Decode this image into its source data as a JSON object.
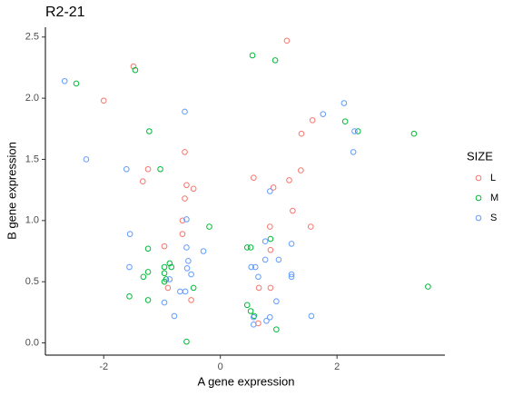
{
  "chart_data": {
    "type": "scatter",
    "title": "R2-21",
    "x_label": "A gene expression",
    "y_label": "B gene expression",
    "legend_title": "SIZE",
    "xlim": [
      -3.0,
      3.85
    ],
    "ylim": [
      -0.1,
      2.58
    ],
    "xticks": [
      -2,
      0,
      2
    ],
    "yticks": [
      {
        "value": 0,
        "label": "0.0"
      },
      0.5,
      {
        "value": 1,
        "label": "1.0"
      },
      1.5,
      {
        "value": 2,
        "label": "2.0"
      },
      2.5
    ],
    "series": [
      {
        "name": "L",
        "color": "#F8766D",
        "x": [
          1.14,
          -1.49,
          -2.0,
          -0.61,
          -1.24,
          -1.33,
          -0.58,
          -0.46,
          -0.61,
          0.57,
          0.91,
          1.18,
          1.38,
          1.39,
          1.58,
          1.24,
          1.55,
          0.85,
          -0.65,
          -0.65,
          -0.96,
          0.86,
          -0.9,
          -0.5,
          0.65,
          0.86,
          0.66
        ],
        "values": [
          2.47,
          2.26,
          1.98,
          1.56,
          1.42,
          1.32,
          1.29,
          1.26,
          1.18,
          1.35,
          1.27,
          1.33,
          1.41,
          1.71,
          1.82,
          1.08,
          0.95,
          0.95,
          1.0,
          0.89,
          0.79,
          0.76,
          0.45,
          0.35,
          0.16,
          0.45,
          0.45
        ]
      },
      {
        "name": "M",
        "color": "#00BA38",
        "x": [
          0.55,
          0.94,
          -1.46,
          -2.47,
          -1.22,
          -1.03,
          2.14,
          2.36,
          3.32,
          -0.19,
          -1.24,
          0.46,
          0.52,
          0.86,
          -0.87,
          -0.96,
          -0.84,
          -0.96,
          -1.32,
          -1.24,
          -0.93,
          -0.96,
          -0.46,
          -1.56,
          -1.24,
          0.46,
          0.52,
          0.58,
          0.96,
          -0.58,
          3.56
        ],
        "values": [
          2.35,
          2.31,
          2.23,
          2.12,
          1.73,
          1.42,
          1.81,
          1.73,
          1.71,
          0.95,
          0.77,
          0.78,
          0.78,
          0.85,
          0.65,
          0.62,
          0.62,
          0.57,
          0.54,
          0.58,
          0.52,
          0.5,
          0.45,
          0.38,
          0.35,
          0.31,
          0.26,
          0.22,
          0.11,
          0.01,
          0.46
        ]
      },
      {
        "name": "S",
        "color": "#619CFF",
        "x": [
          -2.67,
          -0.61,
          2.12,
          1.76,
          2.3,
          -2.3,
          -1.61,
          2.28,
          0.85,
          -1.55,
          -0.58,
          0.77,
          1.22,
          -0.58,
          -0.29,
          -0.55,
          0.77,
          1.0,
          -1.56,
          -0.57,
          0.53,
          0.6,
          -0.5,
          1.22,
          1.22,
          0.65,
          -0.87,
          -0.69,
          -0.6,
          -0.96,
          0.96,
          -0.79,
          1.56,
          0.85,
          0.79,
          0.57,
          0.57
        ],
        "values": [
          2.14,
          1.89,
          1.96,
          1.87,
          1.73,
          1.5,
          1.42,
          1.56,
          1.24,
          0.89,
          1.01,
          0.83,
          0.81,
          0.78,
          0.75,
          0.67,
          0.68,
          0.68,
          0.62,
          0.61,
          0.62,
          0.62,
          0.56,
          0.56,
          0.54,
          0.54,
          0.52,
          0.42,
          0.42,
          0.33,
          0.34,
          0.22,
          0.22,
          0.21,
          0.18,
          0.21,
          0.15
        ]
      }
    ]
  }
}
